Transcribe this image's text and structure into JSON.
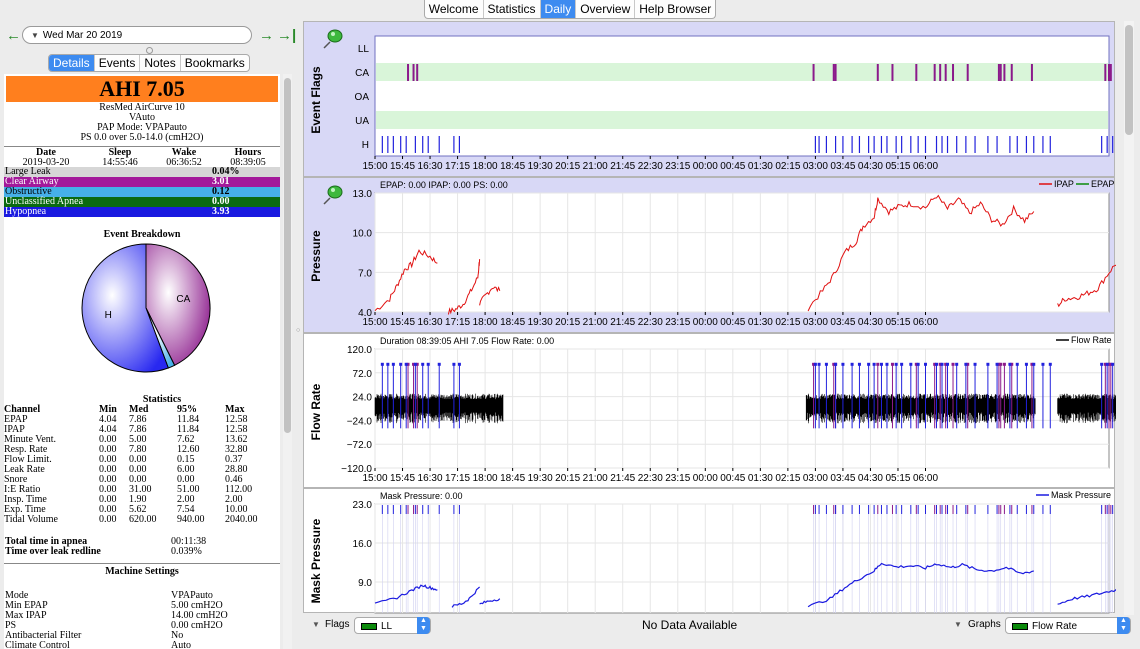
{
  "top_tabs": [
    "Welcome",
    "Statistics",
    "Daily",
    "Overview",
    "Help Browser"
  ],
  "active_top_tab": "Daily",
  "date": {
    "value": "Wed Mar 20 2019",
    "back_icon": "arrow-left-icon",
    "forward_icon": "arrow-right-icon",
    "last_icon": "jump-to-end-icon"
  },
  "sub_tabs": [
    "Details",
    "Events",
    "Notes",
    "Bookmarks"
  ],
  "ahi": "AHI 7.05",
  "machine": {
    "name": "ResMed AirCurve 10",
    "model": "VAuto",
    "pap_mode": "PAP Mode: VPAPauto",
    "ps": "PS 0.0 over 5.0-14.0 (cmH2O)"
  },
  "session": {
    "headers": [
      "Date",
      "Sleep",
      "Wake",
      "Hours"
    ],
    "values": [
      "2019-03-20",
      "14:55:46",
      "06:36:52",
      "08:39:05"
    ]
  },
  "event_rates": [
    {
      "label": "Large Leak",
      "value": "0.04%",
      "color": "#d6d6d6",
      "text": "#000000"
    },
    {
      "label": "Clear Airway",
      "value": "3.01",
      "color": "#a3199a",
      "text": "#ffffff"
    },
    {
      "label": "Obstructive",
      "value": "0.12",
      "color": "#46b0e8",
      "text": "#000000"
    },
    {
      "label": "Unclassified Apnea",
      "value": "0.00",
      "color": "#0a6a10",
      "text": "#ffffff"
    },
    {
      "label": "Hypopnea",
      "value": "3.93",
      "color": "#1a1ae0",
      "text": "#ffffff"
    }
  ],
  "event_breakdown": {
    "title": "Event Breakdown",
    "slices": [
      {
        "label": "CA",
        "value": 3.01,
        "color": "#8b1a8b"
      },
      {
        "label": "",
        "value": 0.12,
        "color": "#46b0e8"
      },
      {
        "label": "H",
        "value": 3.93,
        "color": "#2828f0"
      }
    ]
  },
  "statistics": {
    "title": "Statistics",
    "headers": [
      "Channel",
      "Min",
      "Med",
      "95%",
      "Max"
    ],
    "rows": [
      [
        "EPAP",
        "4.04",
        "7.86",
        "11.84",
        "12.58"
      ],
      [
        "IPAP",
        "4.04",
        "7.86",
        "11.84",
        "12.58"
      ],
      [
        "Minute Vent.",
        "0.00",
        "5.00",
        "7.62",
        "13.62"
      ],
      [
        "Resp. Rate",
        "0.00",
        "7.80",
        "12.60",
        "32.80"
      ],
      [
        "Flow Limit.",
        "0.00",
        "0.00",
        "0.15",
        "0.37"
      ],
      [
        "Leak Rate",
        "0.00",
        "0.00",
        "6.00",
        "28.80"
      ],
      [
        "Snore",
        "0.00",
        "0.00",
        "0.00",
        "0.46"
      ],
      [
        "I:E Ratio",
        "0.00",
        "31.00",
        "51.00",
        "112.00"
      ],
      [
        "Insp. Time",
        "0.00",
        "1.90",
        "2.00",
        "2.00"
      ],
      [
        "Exp. Time",
        "0.00",
        "5.62",
        "7.54",
        "10.00"
      ],
      [
        "Tidal Volume",
        "0.00",
        "620.00",
        "940.00",
        "2040.00"
      ]
    ]
  },
  "totals": [
    {
      "label": "Total time in apnea",
      "value": "00:11:38"
    },
    {
      "label": "Time over leak redline",
      "value": "0.039%"
    }
  ],
  "machine_settings": {
    "title": "Machine Settings",
    "rows": [
      {
        "label": "Mode",
        "value": "VPAPauto"
      },
      {
        "label": "Min EPAP",
        "value": "5.00 cmH2O"
      },
      {
        "label": "Max IPAP",
        "value": "14.00 cmH2O"
      },
      {
        "label": "PS",
        "value": "0.00 cmH2O"
      },
      {
        "label": "Antibacterial Filter",
        "value": "No"
      },
      {
        "label": "Climate Control",
        "value": "Auto"
      }
    ]
  },
  "time_ticks": [
    "15:00",
    "15:45",
    "16:30",
    "17:15",
    "18:00",
    "18:45",
    "19:30",
    "20:15",
    "21:00",
    "21:45",
    "22:30",
    "23:15",
    "00:00",
    "00:45",
    "01:30",
    "02:15",
    "03:00",
    "03:45",
    "04:30",
    "05:15",
    "06:00"
  ],
  "graphs": {
    "event_flags": {
      "title": "Event Flags",
      "rows": [
        "LL",
        "CA",
        "OA",
        "UA",
        "H"
      ],
      "icon": "pushpin-icon",
      "flags": {
        "CA": [
          0.9,
          1.05,
          1.15,
          11.95,
          12.5,
          12.55,
          13.7,
          14.1,
          14.75,
          15.25,
          15.4,
          15.55,
          15.75,
          16.15,
          17.0,
          17.05,
          17.15,
          17.35,
          17.9,
          19.9,
          20.0,
          20.05
        ],
        "OA": [
          20.25
        ],
        "H": [
          0.2,
          0.35,
          0.5,
          0.7,
          0.85,
          1.1,
          1.3,
          1.45,
          1.75,
          2.15,
          2.3,
          12.0,
          12.1,
          12.3,
          12.55,
          12.75,
          13.0,
          13.2,
          13.45,
          13.6,
          13.8,
          13.95,
          14.2,
          14.35,
          14.6,
          14.8,
          15.0,
          15.3,
          15.45,
          15.6,
          15.85,
          16.1,
          16.35,
          16.7,
          16.95,
          17.3,
          17.5,
          17.75,
          17.95,
          18.2,
          18.4,
          19.8,
          19.95,
          20.1,
          20.55
        ]
      }
    },
    "pressure": {
      "title": "Pressure",
      "header": "EPAP: 0.00 IPAP: 0.00 PS: 0.00",
      "legend": [
        "IPAP",
        "EPAP"
      ],
      "legend_colors": [
        "#e01010",
        "#0a8a0a"
      ],
      "y_ticks": [
        "13.0",
        "10.0",
        "7.0",
        "4.0"
      ],
      "ylim": [
        4.0,
        13.0
      ],
      "icon": "pushpin-icon"
    },
    "flow_rate": {
      "title": "Flow Rate",
      "header": "Duration 08:39:05 AHI 7.05 Flow Rate: 0.00",
      "legend": [
        "Flow Rate"
      ],
      "y_ticks": [
        "120.0",
        "72.0",
        "24.0",
        "−24.0",
        "−72.0",
        "−120.0"
      ],
      "ylim": [
        -120.0,
        120.0
      ]
    },
    "mask_pressure": {
      "title": "Mask Pressure",
      "header": "Mask Pressure: 0.00",
      "legend": [
        "Mask Pressure"
      ],
      "y_ticks": [
        "23.0",
        "16.0",
        "9.0"
      ],
      "ylim": [
        4.0,
        23.0
      ]
    }
  },
  "bottom": {
    "flags_label": "Flags",
    "flags_value": "LL",
    "status": "No Data Available",
    "graphs_label": "Graphs",
    "graphs_value": "Flow Rate"
  }
}
